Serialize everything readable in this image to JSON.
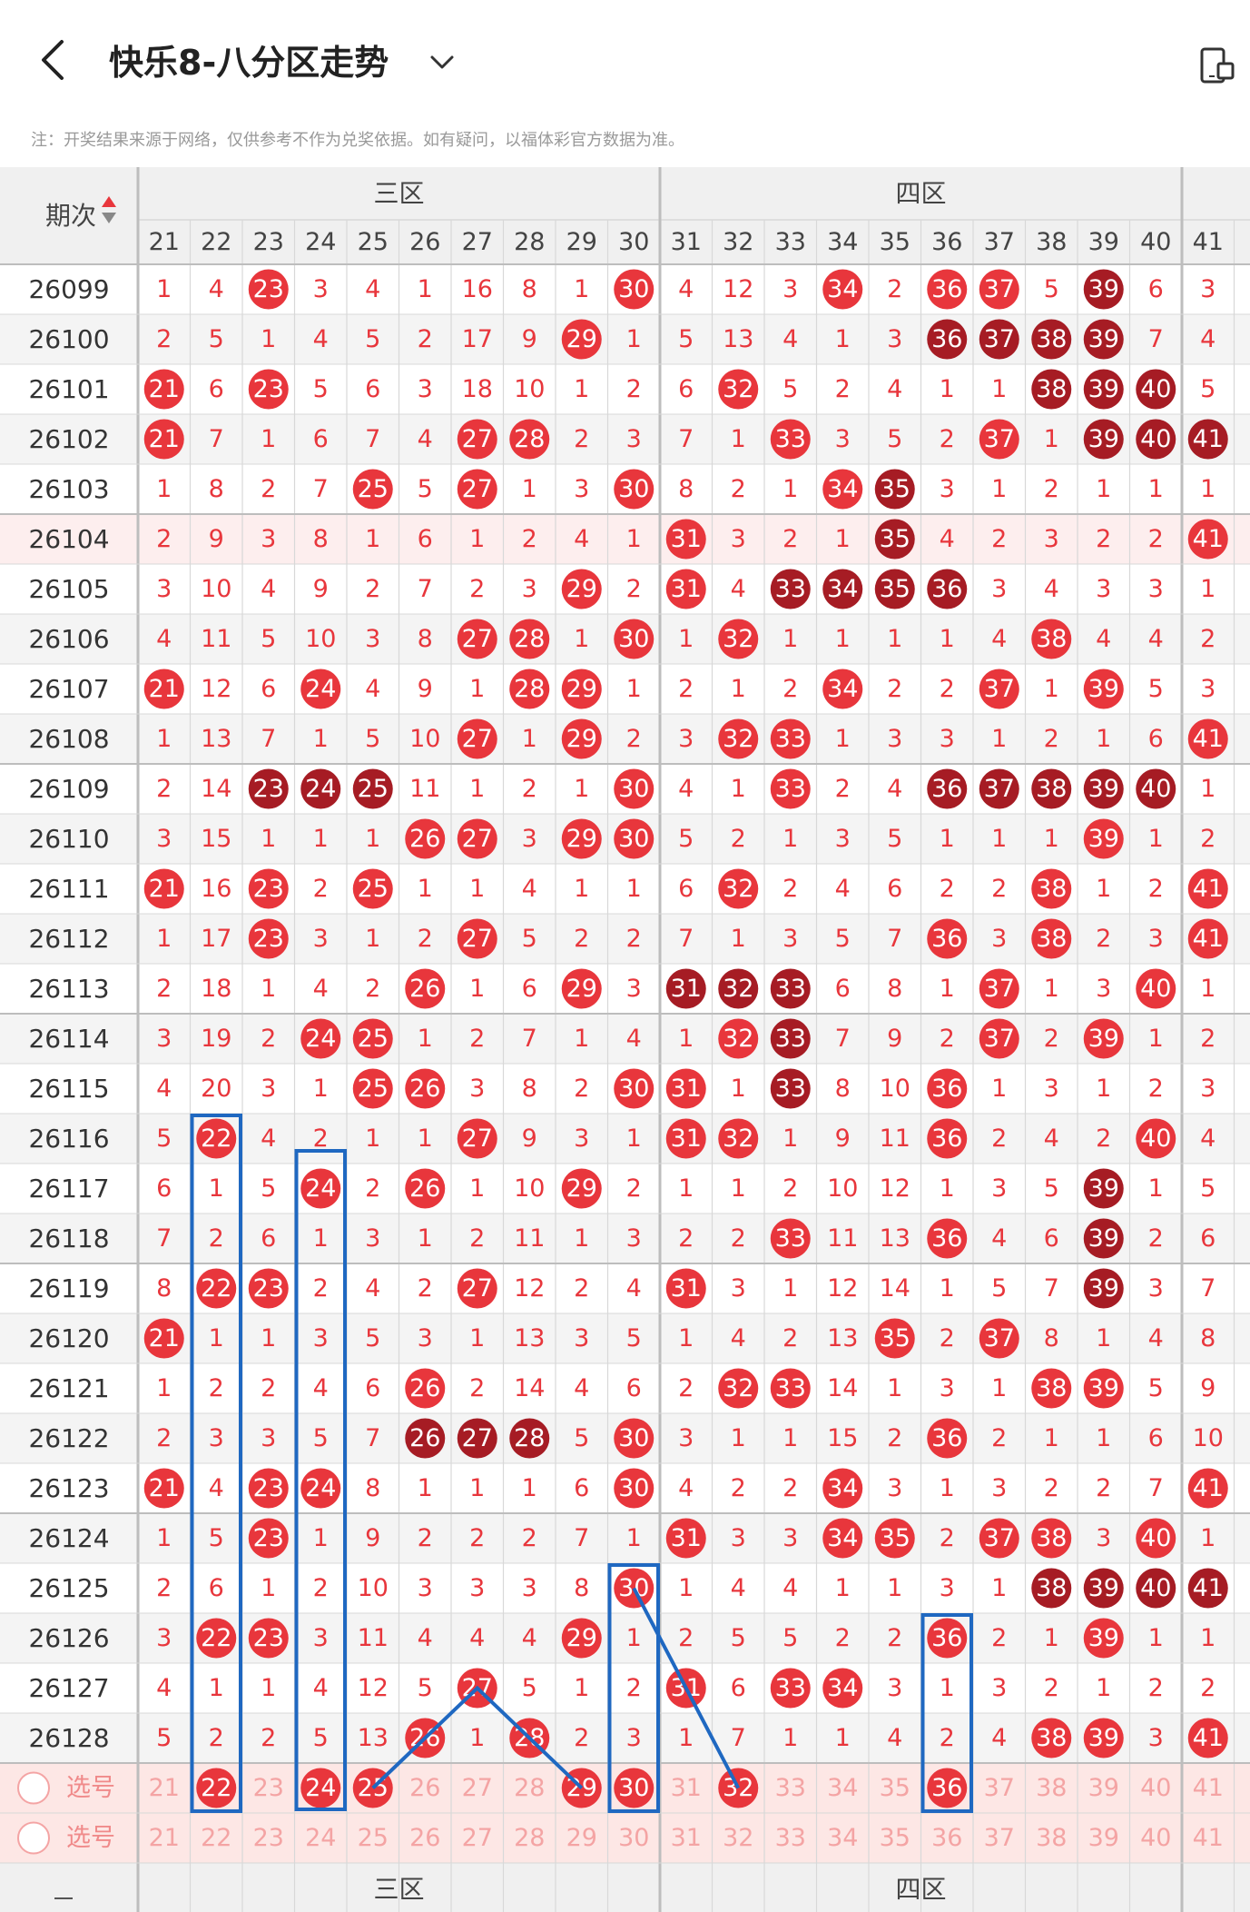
{
  "header": {
    "title": "快乐8-八分区走势",
    "back_icon": "chevron-left-icon",
    "dropdown_icon": "chevron-down-icon",
    "device_icon": "phone-switch-icon"
  },
  "notice": "注：开奖结果来源于网络，仅供参考不作为兑奖依据。如有疑问，以福体彩官方数据为准。",
  "table": {
    "period_header": "期次",
    "zones": [
      {
        "name": "三区"
      },
      {
        "name": "四区"
      }
    ],
    "columns": [
      "21",
      "22",
      "23",
      "24",
      "25",
      "26",
      "27",
      "28",
      "29",
      "30",
      "31",
      "32",
      "33",
      "34",
      "35",
      "36",
      "37",
      "38",
      "39",
      "40",
      "41"
    ],
    "rows": [
      {
        "period": "26099",
        "cells": [
          "1",
          "4",
          "23",
          "3",
          "4",
          "1",
          "16",
          "8",
          "1",
          "30",
          "4",
          "12",
          "3",
          "34",
          "2",
          "36",
          "37",
          "5",
          "39",
          "6",
          "3"
        ],
        "marks": ".|.|r|.|.|.|.|.|.|r|.|.|.|r|.|r|r|.|d|.|."
      },
      {
        "period": "26100",
        "cells": [
          "2",
          "5",
          "1",
          "4",
          "5",
          "2",
          "17",
          "9",
          "29",
          "1",
          "5",
          "13",
          "4",
          "1",
          "3",
          "36",
          "37",
          "38",
          "39",
          "7",
          "4"
        ],
        "marks": ".|.|.|.|.|.|.|.|r|.|.|.|.|.|.|d|d|d|d|.|."
      },
      {
        "period": "26101",
        "cells": [
          "21",
          "6",
          "23",
          "5",
          "6",
          "3",
          "18",
          "10",
          "1",
          "2",
          "6",
          "32",
          "5",
          "2",
          "4",
          "1",
          "1",
          "38",
          "39",
          "40",
          "5"
        ],
        "marks": "r|.|r|.|.|.|.|.|.|.|.|r|.|.|.|.|.|d|d|d|."
      },
      {
        "period": "26102",
        "cells": [
          "21",
          "7",
          "1",
          "6",
          "7",
          "4",
          "27",
          "28",
          "2",
          "3",
          "7",
          "1",
          "33",
          "3",
          "5",
          "2",
          "37",
          "1",
          "39",
          "40",
          "41"
        ],
        "marks": "r|.|.|.|.|.|r|r|.|.|.|.|r|.|.|.|r|.|d|d|d"
      },
      {
        "period": "26103",
        "cells": [
          "1",
          "8",
          "2",
          "7",
          "25",
          "5",
          "27",
          "1",
          "3",
          "30",
          "8",
          "2",
          "1",
          "34",
          "35",
          "3",
          "1",
          "2",
          "1",
          "1",
          "1"
        ],
        "marks": ".|.|.|.|r|.|r|.|.|r|.|.|.|r|d|.|.|.|.|.|."
      },
      {
        "period": "26104",
        "cells": [
          "2",
          "9",
          "3",
          "8",
          "1",
          "6",
          "1",
          "2",
          "4",
          "1",
          "31",
          "3",
          "2",
          "1",
          "35",
          "4",
          "2",
          "3",
          "2",
          "2",
          "41"
        ],
        "marks": ".|.|.|.|.|.|.|.|.|.|r|.|.|.|d|.|.|.|.|.|r"
      },
      {
        "period": "26105",
        "cells": [
          "3",
          "10",
          "4",
          "9",
          "2",
          "7",
          "2",
          "3",
          "29",
          "2",
          "31",
          "4",
          "33",
          "34",
          "35",
          "36",
          "3",
          "4",
          "3",
          "3",
          "1"
        ],
        "marks": ".|.|.|.|.|.|.|.|r|.|r|.|d|d|d|d|.|.|.|.|."
      },
      {
        "period": "26106",
        "cells": [
          "4",
          "11",
          "5",
          "10",
          "3",
          "8",
          "27",
          "28",
          "1",
          "30",
          "1",
          "32",
          "1",
          "1",
          "1",
          "1",
          "4",
          "38",
          "4",
          "4",
          "2"
        ],
        "marks": ".|.|.|.|.|.|r|r|.|r|.|r|.|.|.|.|.|r|.|.|."
      },
      {
        "period": "26107",
        "cells": [
          "21",
          "12",
          "6",
          "24",
          "4",
          "9",
          "1",
          "28",
          "29",
          "1",
          "2",
          "1",
          "2",
          "34",
          "2",
          "2",
          "37",
          "1",
          "39",
          "5",
          "3"
        ],
        "marks": "r|.|.|r|.|.|.|r|r|.|.|.|.|r|.|.|r|.|r|.|."
      },
      {
        "period": "26108",
        "cells": [
          "1",
          "13",
          "7",
          "1",
          "5",
          "10",
          "27",
          "1",
          "29",
          "2",
          "3",
          "32",
          "33",
          "1",
          "3",
          "3",
          "1",
          "2",
          "1",
          "6",
          "41"
        ],
        "marks": ".|.|.|.|.|.|r|.|r|.|.|r|r|.|.|.|.|.|.|.|r"
      },
      {
        "period": "26109",
        "cells": [
          "2",
          "14",
          "23",
          "24",
          "25",
          "11",
          "1",
          "2",
          "1",
          "30",
          "4",
          "1",
          "33",
          "2",
          "4",
          "36",
          "37",
          "38",
          "39",
          "40",
          "1"
        ],
        "marks": ".|.|d|d|d|.|.|.|.|r|.|.|r|.|.|d|d|d|d|d|."
      },
      {
        "period": "26110",
        "cells": [
          "3",
          "15",
          "1",
          "1",
          "1",
          "26",
          "27",
          "3",
          "29",
          "30",
          "5",
          "2",
          "1",
          "3",
          "5",
          "1",
          "1",
          "1",
          "39",
          "1",
          "2"
        ],
        "marks": ".|.|.|.|.|r|r|.|r|r|.|.|.|.|.|.|.|.|r|.|."
      },
      {
        "period": "26111",
        "cells": [
          "21",
          "16",
          "23",
          "2",
          "25",
          "1",
          "1",
          "4",
          "1",
          "1",
          "6",
          "32",
          "2",
          "4",
          "6",
          "2",
          "2",
          "38",
          "1",
          "2",
          "41"
        ],
        "marks": "r|.|r|.|r|.|.|.|.|.|.|r|.|.|.|.|.|r|.|.|r"
      },
      {
        "period": "26112",
        "cells": [
          "1",
          "17",
          "23",
          "3",
          "1",
          "2",
          "27",
          "5",
          "2",
          "2",
          "7",
          "1",
          "3",
          "5",
          "7",
          "36",
          "3",
          "38",
          "2",
          "3",
          "41"
        ],
        "marks": ".|.|r|.|.|.|r|.|.|.|.|.|.|.|.|r|.|r|.|.|r"
      },
      {
        "period": "26113",
        "cells": [
          "2",
          "18",
          "1",
          "4",
          "2",
          "26",
          "1",
          "6",
          "29",
          "3",
          "31",
          "32",
          "33",
          "6",
          "8",
          "1",
          "37",
          "1",
          "3",
          "40",
          "1"
        ],
        "marks": ".|.|.|.|.|r|.|.|r|.|d|d|d|.|.|.|r|.|.|r|."
      },
      {
        "period": "26114",
        "cells": [
          "3",
          "19",
          "2",
          "24",
          "25",
          "1",
          "2",
          "7",
          "1",
          "4",
          "1",
          "32",
          "33",
          "7",
          "9",
          "2",
          "37",
          "2",
          "39",
          "1",
          "2"
        ],
        "marks": ".|.|.|r|r|.|.|.|.|.|.|r|d|.|.|.|r|.|r|.|."
      },
      {
        "period": "26115",
        "cells": [
          "4",
          "20",
          "3",
          "1",
          "25",
          "26",
          "3",
          "8",
          "2",
          "30",
          "31",
          "1",
          "33",
          "8",
          "10",
          "36",
          "1",
          "3",
          "1",
          "2",
          "3"
        ],
        "marks": ".|.|.|.|r|r|.|.|.|r|r|.|d|.|.|r|.|.|.|.|."
      },
      {
        "period": "26116",
        "cells": [
          "5",
          "22",
          "4",
          "2",
          "1",
          "1",
          "27",
          "9",
          "3",
          "1",
          "31",
          "32",
          "1",
          "9",
          "11",
          "36",
          "2",
          "4",
          "2",
          "40",
          "4"
        ],
        "marks": ".|r|.|.|.|.|r|.|.|.|r|r|.|.|.|r|.|.|.|r|."
      },
      {
        "period": "26117",
        "cells": [
          "6",
          "1",
          "5",
          "24",
          "2",
          "26",
          "1",
          "10",
          "29",
          "2",
          "1",
          "1",
          "2",
          "10",
          "12",
          "1",
          "3",
          "5",
          "39",
          "1",
          "5"
        ],
        "marks": ".|.|.|r|.|r|.|.|r|.|.|.|.|.|.|.|.|.|d|.|."
      },
      {
        "period": "26118",
        "cells": [
          "7",
          "2",
          "6",
          "1",
          "3",
          "1",
          "2",
          "11",
          "1",
          "3",
          "2",
          "2",
          "33",
          "11",
          "13",
          "36",
          "4",
          "6",
          "39",
          "2",
          "6"
        ],
        "marks": ".|.|.|.|.|.|.|.|.|.|.|.|r|.|.|r|.|.|d|.|."
      },
      {
        "period": "26119",
        "cells": [
          "8",
          "22",
          "23",
          "2",
          "4",
          "2",
          "27",
          "12",
          "2",
          "4",
          "31",
          "3",
          "1",
          "12",
          "14",
          "1",
          "5",
          "7",
          "39",
          "3",
          "7"
        ],
        "marks": ".|r|r|.|.|.|r|.|.|.|r|.|.|.|.|.|.|.|d|.|."
      },
      {
        "period": "26120",
        "cells": [
          "21",
          "1",
          "1",
          "3",
          "5",
          "3",
          "1",
          "13",
          "3",
          "5",
          "1",
          "4",
          "2",
          "13",
          "35",
          "2",
          "37",
          "8",
          "1",
          "4",
          "8"
        ],
        "marks": "r|.|.|.|.|.|.|.|.|.|.|.|.|.|r|.|r|.|.|.|."
      },
      {
        "period": "26121",
        "cells": [
          "1",
          "2",
          "2",
          "4",
          "6",
          "26",
          "2",
          "14",
          "4",
          "6",
          "2",
          "32",
          "33",
          "14",
          "1",
          "3",
          "1",
          "38",
          "39",
          "5",
          "9"
        ],
        "marks": ".|.|.|.|.|r|.|.|.|.|.|r|r|.|.|.|.|r|r|.|."
      },
      {
        "period": "26122",
        "cells": [
          "2",
          "3",
          "3",
          "5",
          "7",
          "26",
          "27",
          "28",
          "5",
          "30",
          "3",
          "1",
          "1",
          "15",
          "2",
          "36",
          "2",
          "1",
          "1",
          "6",
          "10"
        ],
        "marks": ".|.|.|.|.|d|d|d|.|r|.|.|.|.|.|r|.|.|.|.|."
      },
      {
        "period": "26123",
        "cells": [
          "21",
          "4",
          "23",
          "24",
          "8",
          "1",
          "1",
          "1",
          "6",
          "30",
          "4",
          "2",
          "2",
          "34",
          "3",
          "1",
          "3",
          "2",
          "2",
          "7",
          "41"
        ],
        "marks": "r|.|r|r|.|.|.|.|.|r|.|.|.|r|.|.|.|.|.|.|r"
      },
      {
        "period": "26124",
        "cells": [
          "1",
          "5",
          "23",
          "1",
          "9",
          "2",
          "2",
          "2",
          "7",
          "1",
          "31",
          "3",
          "3",
          "34",
          "35",
          "2",
          "37",
          "38",
          "3",
          "40",
          "1"
        ],
        "marks": ".|.|r|.|.|.|.|.|.|.|r|.|.|r|r|.|r|r|.|r|."
      },
      {
        "period": "26125",
        "cells": [
          "2",
          "6",
          "1",
          "2",
          "10",
          "3",
          "3",
          "3",
          "8",
          "30",
          "1",
          "4",
          "4",
          "1",
          "1",
          "3",
          "1",
          "38",
          "39",
          "40",
          "41"
        ],
        "marks": ".|.|.|.|.|.|.|.|.|r|.|.|.|.|.|.|.|d|d|d|d"
      },
      {
        "period": "26126",
        "cells": [
          "3",
          "22",
          "23",
          "3",
          "11",
          "4",
          "4",
          "4",
          "29",
          "1",
          "2",
          "5",
          "5",
          "2",
          "2",
          "36",
          "2",
          "1",
          "39",
          "1",
          "1"
        ],
        "marks": ".|r|r|.|.|.|.|.|r|.|.|.|.|.|.|r|.|.|r|.|."
      },
      {
        "period": "26127",
        "cells": [
          "4",
          "1",
          "1",
          "4",
          "12",
          "5",
          "27",
          "5",
          "1",
          "2",
          "31",
          "6",
          "33",
          "34",
          "3",
          "1",
          "3",
          "2",
          "1",
          "2",
          "2"
        ],
        "marks": ".|.|.|.|.|.|r|.|.|.|r|.|r|r|.|.|.|.|.|.|."
      },
      {
        "period": "26128",
        "cells": [
          "5",
          "2",
          "2",
          "5",
          "13",
          "26",
          "1",
          "28",
          "2",
          "3",
          "1",
          "7",
          "1",
          "1",
          "4",
          "2",
          "4",
          "38",
          "39",
          "3",
          "41"
        ],
        "marks": ".|.|.|.|.|r|.|r|.|.|.|.|.|.|.|.|.|r|r|.|r"
      }
    ],
    "select_rows": [
      {
        "label": "选号",
        "cells": [
          "21",
          "22",
          "23",
          "24",
          "25",
          "26",
          "27",
          "28",
          "29",
          "30",
          "31",
          "32",
          "33",
          "34",
          "35",
          "36",
          "37",
          "38",
          "39",
          "40",
          "41"
        ],
        "selected": [
          "22",
          "24",
          "25",
          "29",
          "30",
          "32",
          "36"
        ]
      },
      {
        "label": "选号",
        "cells": [
          "21",
          "22",
          "23",
          "24",
          "25",
          "26",
          "27",
          "28",
          "29",
          "30",
          "31",
          "32",
          "33",
          "34",
          "35",
          "36",
          "37",
          "38",
          "39",
          "40",
          "41"
        ],
        "selected": []
      }
    ]
  },
  "colors": {
    "hot": "#e8363c",
    "repeat": "#a61c24",
    "miss_text": "#e8363c",
    "grid": "#d8d8d8",
    "zone_div": "#bdbdbd",
    "header_bg": "#f0f0f0",
    "alt_row": "#f4f4f4",
    "pink_row": "#fdeeee",
    "select_bg": "#fde7e5",
    "select_text": "#f4a4a4",
    "highlight": "#1f68c1"
  }
}
